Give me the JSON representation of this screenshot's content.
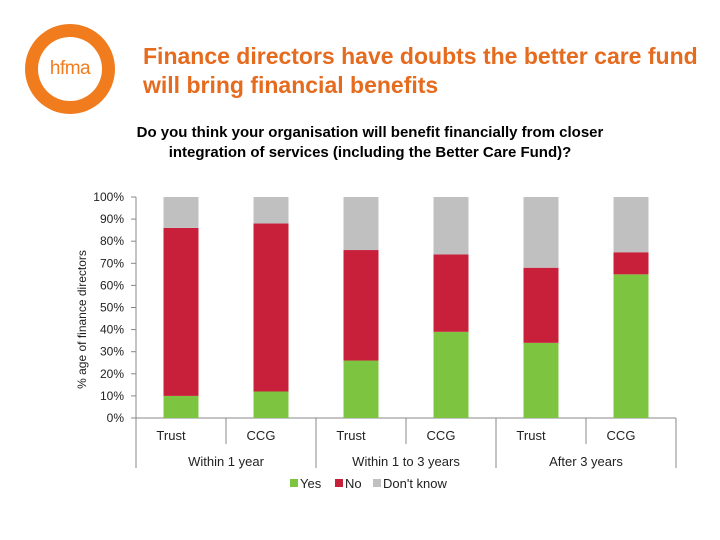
{
  "logo": {
    "text": "hfma"
  },
  "slide": {
    "title": "Finance directors have doubts the better care fund will bring financial benefits"
  },
  "colors": {
    "yes": "#7dc440",
    "no": "#c8203a",
    "dont_know": "#c0c0c0",
    "title": "#e56b1f",
    "logo": "#f07c1e"
  },
  "chart_data": {
    "type": "bar",
    "stacked": true,
    "title": "Do you think your organisation will benefit financially from closer integration of services (including the Better Care Fund)?",
    "ylabel": "% age of finance directors",
    "ylim": [
      0,
      100
    ],
    "yticks": [
      "0%",
      "10%",
      "20%",
      "30%",
      "40%",
      "50%",
      "60%",
      "70%",
      "80%",
      "90%",
      "100%"
    ],
    "categories": [
      "Trust",
      "CCG",
      "Trust",
      "CCG",
      "Trust",
      "CCG"
    ],
    "groups": [
      "Within 1 year",
      "Within 1 to 3 years",
      "After 3 years"
    ],
    "series": [
      {
        "name": "Yes",
        "values": [
          10,
          12,
          26,
          39,
          34,
          65
        ]
      },
      {
        "name": "No",
        "values": [
          76,
          76,
          50,
          35,
          34,
          10
        ]
      },
      {
        "name": "Don't know",
        "values": [
          14,
          12,
          24,
          26,
          32,
          25
        ]
      }
    ],
    "legend_position": "bottom"
  }
}
